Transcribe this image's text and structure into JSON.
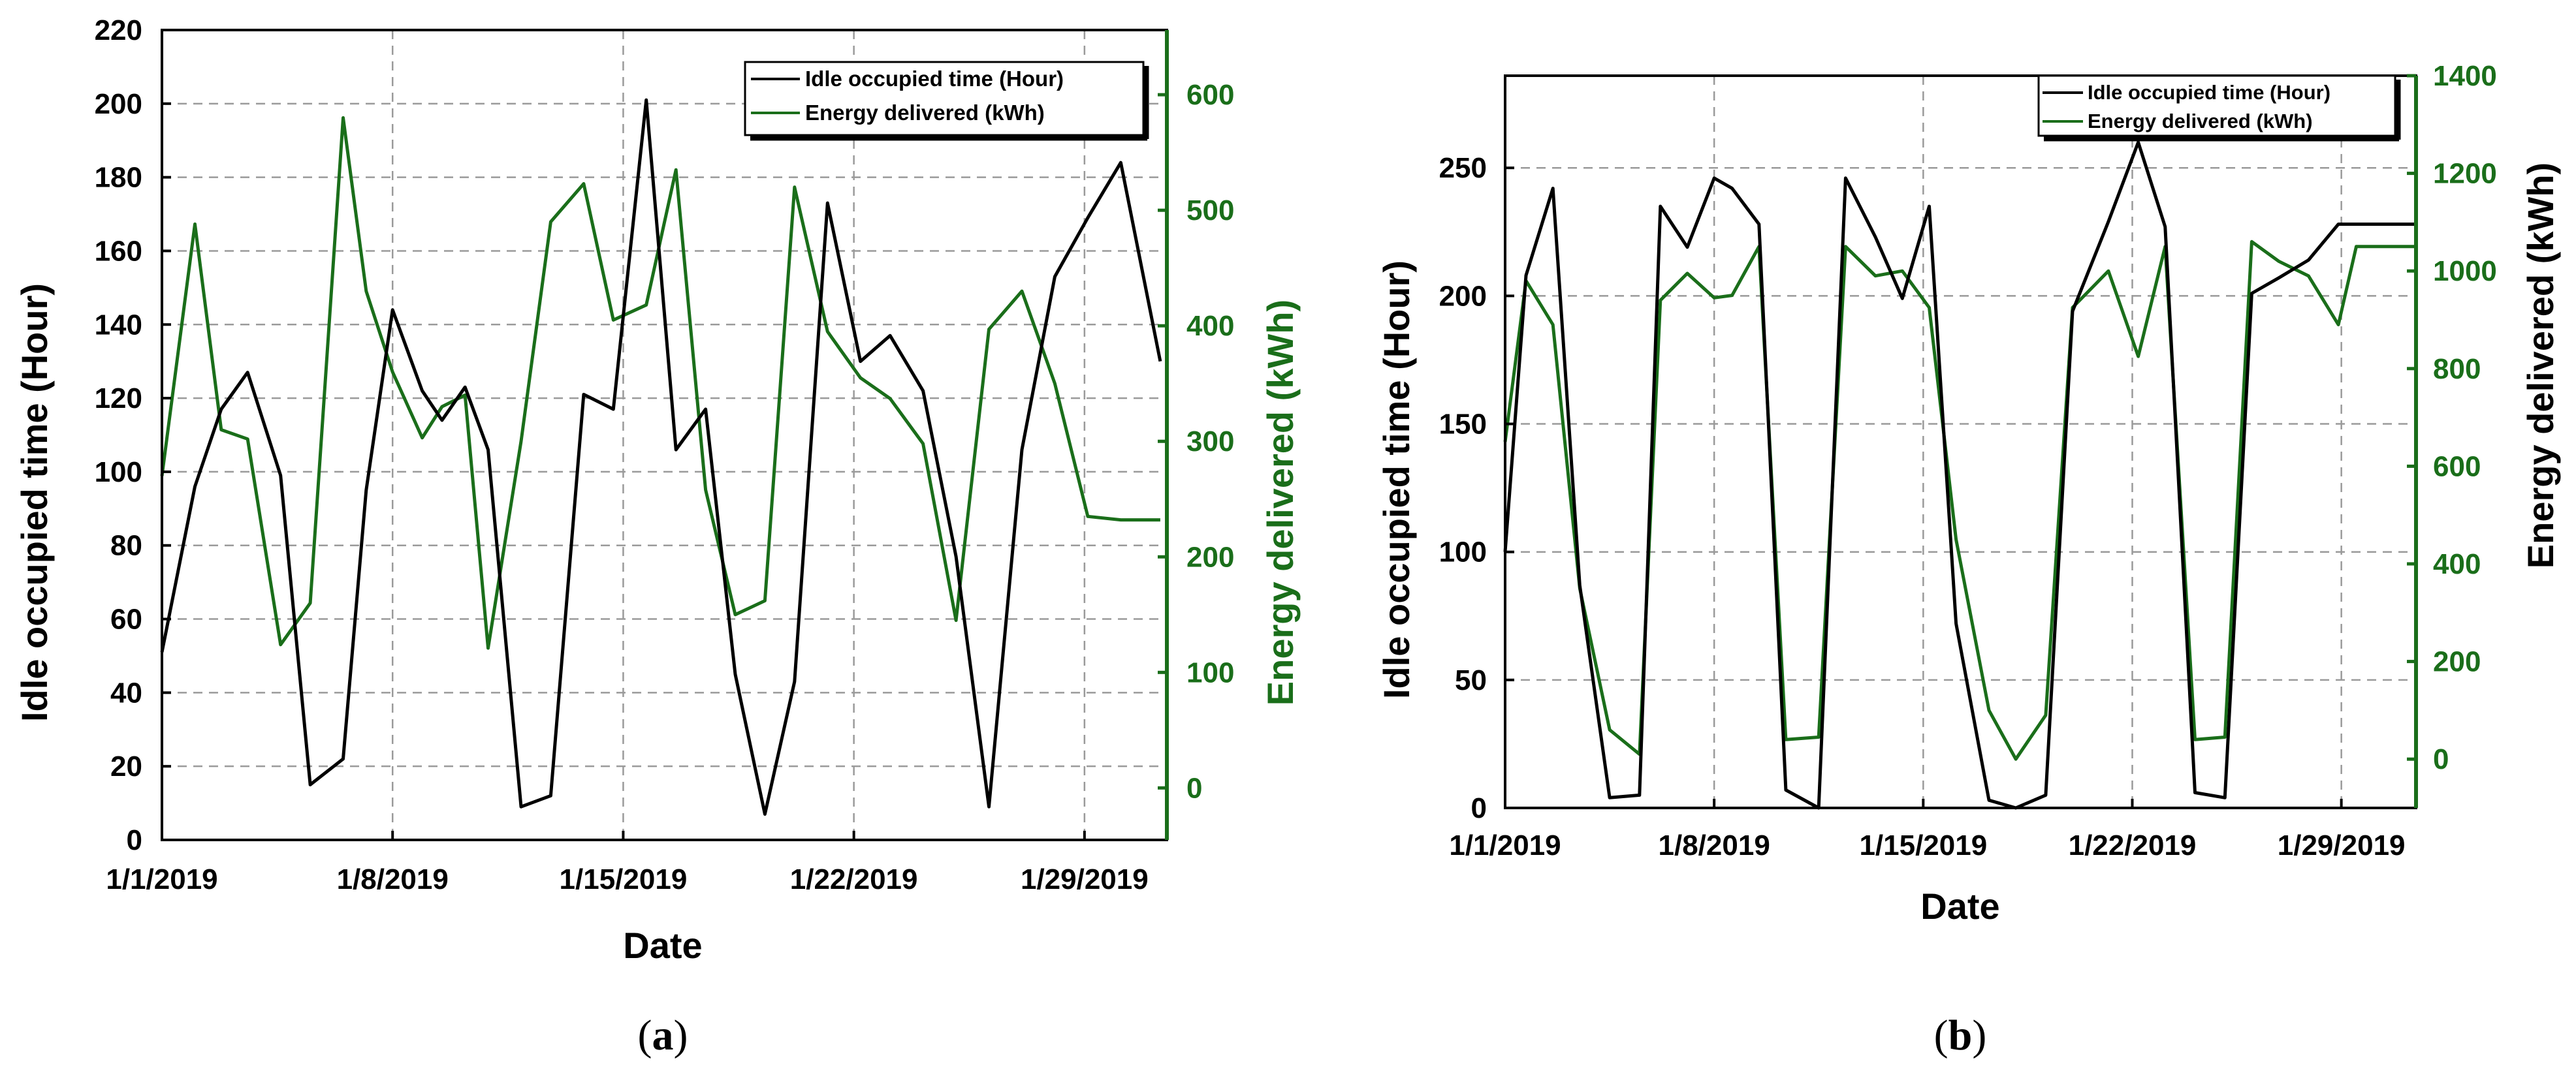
{
  "figure": {
    "panel_a_label": "(a)",
    "panel_b_label": "(b)"
  },
  "colors": {
    "idle": "#000000",
    "energy": "#1a6e1a",
    "axis": "#000000"
  },
  "chart_data": [
    {
      "id": "a",
      "type": "line",
      "panel_label": "(a)",
      "xlabel": "Date",
      "ylabel_left": "Idle occupied time (Hour)",
      "ylabel_right": "Energy delivered (kWh)",
      "x_unit": "day of January 2019",
      "xlim": [
        1,
        31.5
      ],
      "x_ticks": [
        1,
        8,
        15,
        22,
        29
      ],
      "x_tick_labels": [
        "1/1/2019",
        "1/8/2019",
        "1/15/2019",
        "1/22/2019",
        "1/29/2019"
      ],
      "ylim_left": [
        0,
        220
      ],
      "y_ticks_left": [
        0,
        20,
        40,
        60,
        80,
        100,
        120,
        140,
        160,
        180,
        200,
        220
      ],
      "ylim_right": [
        -45,
        656
      ],
      "y_ticks_right": [
        0,
        100,
        200,
        300,
        400,
        500,
        600
      ],
      "grid": true,
      "legend_position": "top-right",
      "series": [
        {
          "name": "Idle occupied time (Hour)",
          "axis": "left",
          "color": "#000000",
          "x": [
            1,
            2,
            2.8,
            3.6,
            4.6,
            5.5,
            6.5,
            7.2,
            8,
            8.9,
            9.5,
            10.2,
            10.9,
            11.9,
            12.8,
            13.8,
            14.7,
            15.7,
            16.6,
            17.5,
            18.4,
            19.3,
            20.2,
            21.2,
            22.2,
            23.1,
            24.1,
            25.1,
            26.1,
            27.1,
            28.1,
            29.1,
            30.1,
            31.3
          ],
          "values": [
            51,
            96,
            117,
            127,
            99,
            15,
            22,
            95,
            144,
            122,
            114,
            123,
            106,
            9,
            12,
            121,
            117,
            201,
            106,
            117,
            45,
            7,
            43,
            173,
            130,
            137,
            122,
            77,
            9,
            106,
            153,
            169,
            184,
            130
          ]
        },
        {
          "name": "Energy delivered (kWh)",
          "axis": "right",
          "color": "#1a6e1a",
          "x": [
            1,
            2,
            2.8,
            3.6,
            4.6,
            5.5,
            6.5,
            7.2,
            8,
            8.9,
            9.5,
            10.2,
            10.9,
            11.9,
            12.8,
            13.8,
            14.7,
            15.7,
            16.6,
            17.5,
            18.4,
            19.3,
            20.2,
            21.2,
            22.2,
            23.1,
            24.1,
            25.1,
            26.1,
            27.1,
            28.1,
            29.1,
            30.1,
            31.3
          ],
          "values": [
            270,
            488,
            310,
            302,
            124,
            160,
            580,
            430,
            360,
            303,
            330,
            340,
            121,
            300,
            490,
            523,
            405,
            418,
            535,
            258,
            150,
            162,
            520,
            395,
            355,
            337,
            298,
            145,
            397,
            430,
            350,
            235,
            232,
            232
          ]
        }
      ]
    },
    {
      "id": "b",
      "type": "line",
      "panel_label": "(b)",
      "xlabel": "Date",
      "ylabel_left": "Idle occupied time (Hour)",
      "ylabel_right": "Energy delivered (kWh)",
      "x_unit": "day of January 2019",
      "xlim": [
        1,
        31.5
      ],
      "x_ticks": [
        1,
        8,
        15,
        22,
        29
      ],
      "x_tick_labels": [
        "1/1/2019",
        "1/8/2019",
        "1/15/2019",
        "1/22/2019",
        "1/29/2019"
      ],
      "ylim_left": [
        0,
        286
      ],
      "y_ticks_left": [
        0,
        50,
        100,
        150,
        200,
        250
      ],
      "ylim_right": [
        -100,
        1400
      ],
      "y_ticks_right": [
        0,
        200,
        400,
        600,
        800,
        1000,
        1200,
        1400
      ],
      "grid": true,
      "legend_position": "top-right",
      "series": [
        {
          "name": "Idle occupied time (Hour)",
          "axis": "left",
          "color": "#000000",
          "x": [
            1,
            1.7,
            2.6,
            3.5,
            4.5,
            5.5,
            6.2,
            7.1,
            8,
            8.6,
            9.5,
            10.4,
            11.5,
            12.4,
            13.4,
            14.3,
            15.2,
            16.1,
            17.2,
            18.1,
            19.1,
            20,
            21.2,
            22.2,
            23.1,
            24.1,
            25.1,
            26,
            26.9,
            27.9,
            28.9,
            29.5,
            30.5,
            31.5
          ],
          "values": [
            100,
            208,
            242,
            87,
            4,
            5,
            235,
            219,
            246,
            242,
            228,
            7,
            0,
            246,
            223,
            199,
            235,
            72,
            3,
            0,
            5,
            194,
            229,
            260,
            227,
            6,
            4,
            201,
            207,
            214,
            228,
            228,
            228,
            228
          ]
        },
        {
          "name": "Energy delivered (kWh)",
          "axis": "right",
          "color": "#1a6e1a",
          "x": [
            1,
            1.7,
            2.6,
            3.5,
            4.5,
            5.5,
            6.2,
            7.1,
            8,
            8.6,
            9.5,
            10.4,
            11.5,
            12.4,
            13.4,
            14.3,
            15.2,
            16.1,
            17.2,
            18.1,
            19.1,
            20,
            21.2,
            22.2,
            23.1,
            24.1,
            25.1,
            26,
            26.9,
            27.9,
            28.9,
            29.5,
            30.5,
            31.5
          ],
          "values": [
            650,
            980,
            890,
            350,
            60,
            10,
            940,
            995,
            945,
            950,
            1050,
            40,
            45,
            1050,
            990,
            1000,
            925,
            450,
            100,
            0,
            90,
            925,
            1000,
            825,
            1050,
            40,
            45,
            1060,
            1020,
            990,
            890,
            1050,
            1050,
            1050
          ]
        }
      ]
    }
  ]
}
